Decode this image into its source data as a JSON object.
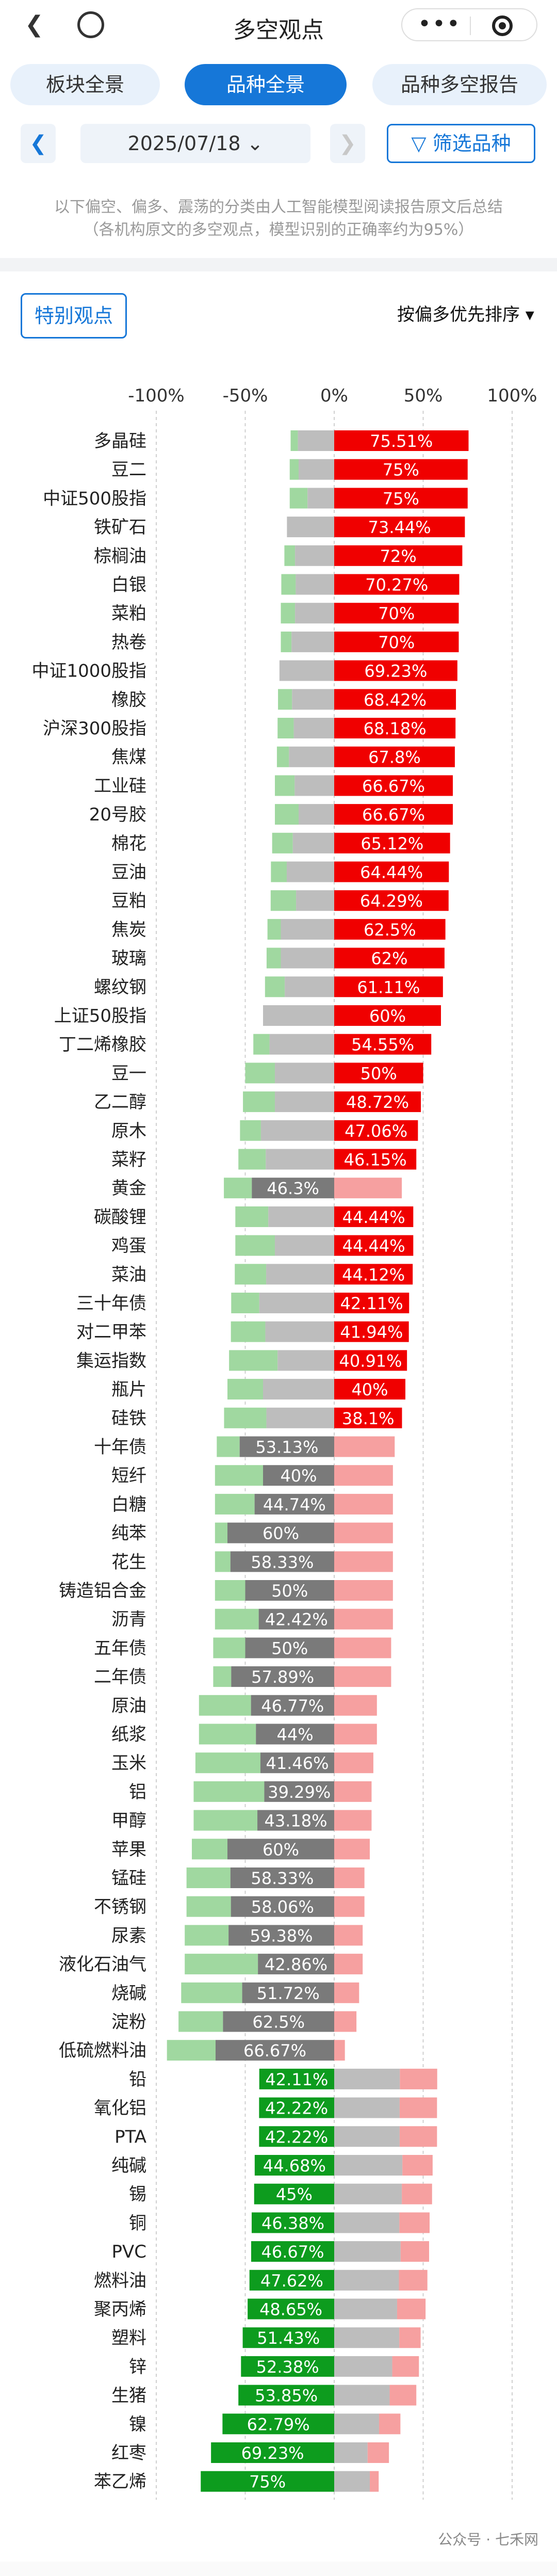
{
  "nav": {
    "back_icon": "chevron-left-icon",
    "title": "多空观点",
    "more_icon": "more-dots-icon",
    "close_icon": "target-icon"
  },
  "tabs": [
    {
      "label": "板块全景",
      "active": false
    },
    {
      "label": "品种全景",
      "active": true
    },
    {
      "label": "品种多空报告",
      "active": false
    }
  ],
  "date_bar": {
    "prev_icon": "chevron-left-icon",
    "date": "2025/07/18 ⌄",
    "next_icon": "chevron-right-icon",
    "filter_label": "▽ 筛选品种"
  },
  "note_line1": "以下偏空、偏多、震荡的分类由人工智能模型阅读报告原文后总结",
  "note_line2": "（各机构原文的多空观点，模型识别的正确率约为95%）",
  "special_label": "特别观点",
  "sort_label": "按偏多优先排序 ▾",
  "watermark": "公众号 · 七禾网",
  "colors": {
    "bull": "#f00000",
    "bull_light": "#f6a0a0",
    "neutral": "#bdbdbd",
    "neutral_dark": "#7a7a7a",
    "bear": "#0d9c1e",
    "bear_light": "#a0d8a0",
    "accent": "#1677d8"
  },
  "chart_data": {
    "type": "bar",
    "title": "",
    "xlim": [
      -100,
      100
    ],
    "ticks": [
      "-100%",
      "-50%",
      "0%",
      "50%",
      "100%"
    ],
    "note": "Diverging stacked bar: each row = 偏多(right of 0), 震荡(straddling 0), 偏空(left). The labeled share is the dominant one.",
    "rows": [
      {
        "name": "多晶硅",
        "bull": 75.51,
        "neutral": 20.41,
        "bear": 4.08,
        "label": "75.51%",
        "dominant": "bull"
      },
      {
        "name": "豆二",
        "bull": 75,
        "neutral": 20,
        "bear": 5,
        "label": "75%",
        "dominant": "bull"
      },
      {
        "name": "中证500股指",
        "bull": 75,
        "neutral": 15,
        "bear": 10,
        "label": "75%",
        "dominant": "bull"
      },
      {
        "name": "铁矿石",
        "bull": 73.44,
        "neutral": 26.56,
        "bear": 0,
        "label": "73.44%",
        "dominant": "bull"
      },
      {
        "name": "棕榈油",
        "bull": 72,
        "neutral": 22,
        "bear": 6,
        "label": "72%",
        "dominant": "bull"
      },
      {
        "name": "白银",
        "bull": 70.27,
        "neutral": 21.62,
        "bear": 8.11,
        "label": "70.27%",
        "dominant": "bull"
      },
      {
        "name": "菜粕",
        "bull": 70,
        "neutral": 22,
        "bear": 8,
        "label": "70%",
        "dominant": "bull"
      },
      {
        "name": "热卷",
        "bull": 70,
        "neutral": 24,
        "bear": 6,
        "label": "70%",
        "dominant": "bull"
      },
      {
        "name": "中证1000股指",
        "bull": 69.23,
        "neutral": 30.77,
        "bear": 0,
        "label": "69.23%",
        "dominant": "bull"
      },
      {
        "name": "橡胶",
        "bull": 68.42,
        "neutral": 23.68,
        "bear": 7.9,
        "label": "68.42%",
        "dominant": "bull"
      },
      {
        "name": "沪深300股指",
        "bull": 68.18,
        "neutral": 22.73,
        "bear": 9.09,
        "label": "68.18%",
        "dominant": "bull"
      },
      {
        "name": "焦煤",
        "bull": 67.8,
        "neutral": 25.42,
        "bear": 6.78,
        "label": "67.8%",
        "dominant": "bull"
      },
      {
        "name": "工业硅",
        "bull": 66.67,
        "neutral": 22.22,
        "bear": 11.11,
        "label": "66.67%",
        "dominant": "bull"
      },
      {
        "name": "20号胶",
        "bull": 66.67,
        "neutral": 20,
        "bear": 13.33,
        "label": "66.67%",
        "dominant": "bull"
      },
      {
        "name": "棉花",
        "bull": 65.12,
        "neutral": 23.26,
        "bear": 11.62,
        "label": "65.12%",
        "dominant": "bull"
      },
      {
        "name": "豆油",
        "bull": 64.44,
        "neutral": 26.67,
        "bear": 8.89,
        "label": "64.44%",
        "dominant": "bull"
      },
      {
        "name": "豆粕",
        "bull": 64.29,
        "neutral": 21.43,
        "bear": 14.28,
        "label": "64.29%",
        "dominant": "bull"
      },
      {
        "name": "焦炭",
        "bull": 62.5,
        "neutral": 30,
        "bear": 7.5,
        "label": "62.5%",
        "dominant": "bull"
      },
      {
        "name": "玻璃",
        "bull": 62,
        "neutral": 30,
        "bear": 8,
        "label": "62%",
        "dominant": "bull"
      },
      {
        "name": "螺纹钢",
        "bull": 61.11,
        "neutral": 27.78,
        "bear": 11.11,
        "label": "61.11%",
        "dominant": "bull"
      },
      {
        "name": "上证50股指",
        "bull": 60,
        "neutral": 40,
        "bear": 0,
        "label": "60%",
        "dominant": "bull"
      },
      {
        "name": "丁二烯橡胶",
        "bull": 54.55,
        "neutral": 36.36,
        "bear": 9.09,
        "label": "54.55%",
        "dominant": "bull"
      },
      {
        "name": "豆一",
        "bull": 50,
        "neutral": 33.33,
        "bear": 16.67,
        "label": "50%",
        "dominant": "bull"
      },
      {
        "name": "乙二醇",
        "bull": 48.72,
        "neutral": 33.33,
        "bear": 17.95,
        "label": "48.72%",
        "dominant": "bull"
      },
      {
        "name": "原木",
        "bull": 47.06,
        "neutral": 41.18,
        "bear": 11.76,
        "label": "47.06%",
        "dominant": "bull"
      },
      {
        "name": "菜籽",
        "bull": 46.15,
        "neutral": 38.46,
        "bear": 15.39,
        "label": "46.15%",
        "dominant": "bull"
      },
      {
        "name": "黄金",
        "bull": 38,
        "neutral": 46.3,
        "bear": 15.7,
        "label": "46.3%",
        "dominant": "neutral"
      },
      {
        "name": "碳酸锂",
        "bull": 44.44,
        "neutral": 37.04,
        "bear": 18.52,
        "label": "44.44%",
        "dominant": "bull"
      },
      {
        "name": "鸡蛋",
        "bull": 44.44,
        "neutral": 33.33,
        "bear": 22.23,
        "label": "44.44%",
        "dominant": "bull"
      },
      {
        "name": "菜油",
        "bull": 44.12,
        "neutral": 38.24,
        "bear": 17.64,
        "label": "44.12%",
        "dominant": "bull"
      },
      {
        "name": "三十年债",
        "bull": 42.11,
        "neutral": 42.1,
        "bear": 15.79,
        "label": "42.11%",
        "dominant": "bull"
      },
      {
        "name": "对二甲苯",
        "bull": 41.94,
        "neutral": 38.71,
        "bear": 19.35,
        "label": "41.94%",
        "dominant": "bull"
      },
      {
        "name": "集运指数",
        "bull": 40.91,
        "neutral": 31.82,
        "bear": 27.27,
        "label": "40.91%",
        "dominant": "bull"
      },
      {
        "name": "瓶片",
        "bull": 40,
        "neutral": 40,
        "bear": 20,
        "label": "40%",
        "dominant": "bull"
      },
      {
        "name": "硅铁",
        "bull": 38.1,
        "neutral": 38.1,
        "bear": 23.8,
        "label": "38.1%",
        "dominant": "bull"
      },
      {
        "name": "十年债",
        "bull": 34,
        "neutral": 53.13,
        "bear": 12.87,
        "label": "53.13%",
        "dominant": "neutral"
      },
      {
        "name": "短纤",
        "bull": 33,
        "neutral": 40,
        "bear": 27,
        "label": "40%",
        "dominant": "neutral"
      },
      {
        "name": "白糖",
        "bull": 33,
        "neutral": 44.74,
        "bear": 22.26,
        "label": "44.74%",
        "dominant": "neutral"
      },
      {
        "name": "纯苯",
        "bull": 33,
        "neutral": 60,
        "bear": 7,
        "label": "60%",
        "dominant": "neutral"
      },
      {
        "name": "花生",
        "bull": 33,
        "neutral": 58.33,
        "bear": 8.67,
        "label": "58.33%",
        "dominant": "neutral"
      },
      {
        "name": "铸造铝合金",
        "bull": 33,
        "neutral": 50,
        "bear": 17,
        "label": "50%",
        "dominant": "neutral"
      },
      {
        "name": "沥青",
        "bull": 33,
        "neutral": 42.42,
        "bear": 24.58,
        "label": "42.42%",
        "dominant": "neutral"
      },
      {
        "name": "五年债",
        "bull": 32,
        "neutral": 50,
        "bear": 18,
        "label": "50%",
        "dominant": "neutral"
      },
      {
        "name": "二年债",
        "bull": 32,
        "neutral": 57.89,
        "bear": 10.11,
        "label": "57.89%",
        "dominant": "neutral"
      },
      {
        "name": "原油",
        "bull": 24,
        "neutral": 46.77,
        "bear": 29.23,
        "label": "46.77%",
        "dominant": "neutral"
      },
      {
        "name": "纸浆",
        "bull": 24,
        "neutral": 44,
        "bear": 32,
        "label": "44%",
        "dominant": "neutral"
      },
      {
        "name": "玉米",
        "bull": 22,
        "neutral": 41.46,
        "bear": 36.54,
        "label": "41.46%",
        "dominant": "neutral"
      },
      {
        "name": "铝",
        "bull": 21,
        "neutral": 39.29,
        "bear": 39.71,
        "label": "39.29%",
        "dominant": "neutral"
      },
      {
        "name": "甲醇",
        "bull": 21,
        "neutral": 43.18,
        "bear": 35.82,
        "label": "43.18%",
        "dominant": "neutral"
      },
      {
        "name": "苹果",
        "bull": 20,
        "neutral": 60,
        "bear": 20,
        "label": "60%",
        "dominant": "neutral"
      },
      {
        "name": "锰硅",
        "bull": 17,
        "neutral": 58.33,
        "bear": 24.67,
        "label": "58.33%",
        "dominant": "neutral"
      },
      {
        "name": "不锈钢",
        "bull": 17,
        "neutral": 58.06,
        "bear": 24.94,
        "label": "58.06%",
        "dominant": "neutral"
      },
      {
        "name": "尿素",
        "bull": 16,
        "neutral": 59.38,
        "bear": 24.62,
        "label": "59.38%",
        "dominant": "neutral"
      },
      {
        "name": "液化石油气",
        "bull": 16,
        "neutral": 42.86,
        "bear": 41.14,
        "label": "42.86%",
        "dominant": "neutral"
      },
      {
        "name": "烧碱",
        "bull": 14,
        "neutral": 51.72,
        "bear": 34.28,
        "label": "51.72%",
        "dominant": "neutral"
      },
      {
        "name": "淀粉",
        "bull": 12.5,
        "neutral": 62.5,
        "bear": 25,
        "label": "62.5%",
        "dominant": "neutral"
      },
      {
        "name": "低硫燃料油",
        "bull": 6,
        "neutral": 66.67,
        "bear": 27.33,
        "label": "66.67%",
        "dominant": "neutral"
      },
      {
        "name": "铅",
        "bull": 21,
        "neutral": 36.89,
        "bear": 42.11,
        "label": "42.11%",
        "dominant": "bear"
      },
      {
        "name": "氧化铝",
        "bull": 21,
        "neutral": 36.78,
        "bear": 42.22,
        "label": "42.22%",
        "dominant": "bear"
      },
      {
        "name": "PTA",
        "bull": 21,
        "neutral": 36.78,
        "bear": 42.22,
        "label": "42.22%",
        "dominant": "bear"
      },
      {
        "name": "纯碱",
        "bull": 17,
        "neutral": 38.32,
        "bear": 44.68,
        "label": "44.68%",
        "dominant": "bear"
      },
      {
        "name": "锡",
        "bull": 17,
        "neutral": 38,
        "bear": 45,
        "label": "45%",
        "dominant": "bear"
      },
      {
        "name": "铜",
        "bull": 17,
        "neutral": 36.62,
        "bear": 46.38,
        "label": "46.38%",
        "dominant": "bear"
      },
      {
        "name": "PVC",
        "bull": 16,
        "neutral": 37.33,
        "bear": 46.67,
        "label": "46.67%",
        "dominant": "bear"
      },
      {
        "name": "燃料油",
        "bull": 16,
        "neutral": 36.38,
        "bear": 47.62,
        "label": "47.62%",
        "dominant": "bear"
      },
      {
        "name": "聚丙烯",
        "bull": 16,
        "neutral": 35.35,
        "bear": 48.65,
        "label": "48.65%",
        "dominant": "bear"
      },
      {
        "name": "塑料",
        "bull": 12,
        "neutral": 36.57,
        "bear": 51.43,
        "label": "51.43%",
        "dominant": "bear"
      },
      {
        "name": "锌",
        "bull": 15,
        "neutral": 32.62,
        "bear": 52.38,
        "label": "52.38%",
        "dominant": "bear"
      },
      {
        "name": "生猪",
        "bull": 15,
        "neutral": 31.15,
        "bear": 53.85,
        "label": "53.85%",
        "dominant": "bear"
      },
      {
        "name": "镍",
        "bull": 12,
        "neutral": 25.21,
        "bear": 62.79,
        "label": "62.79%",
        "dominant": "bear"
      },
      {
        "name": "红枣",
        "bull": 12,
        "neutral": 18.77,
        "bear": 69.23,
        "label": "69.23%",
        "dominant": "bear"
      },
      {
        "name": "苯乙烯",
        "bull": 5,
        "neutral": 20,
        "bear": 75,
        "label": "75%",
        "dominant": "bear"
      }
    ]
  }
}
